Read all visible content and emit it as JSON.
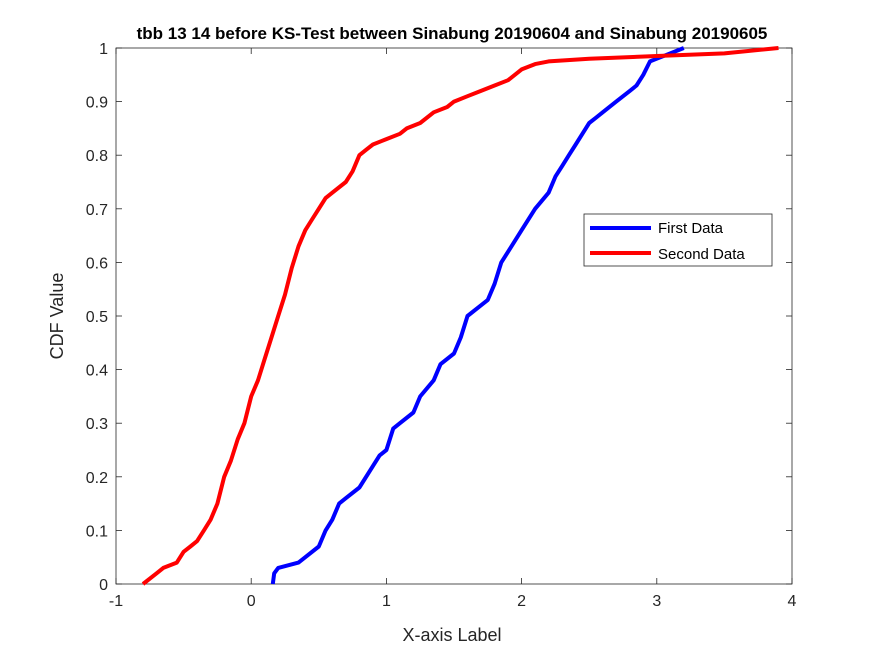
{
  "chart_data": {
    "type": "line",
    "title": "tbb 13 14 before KS-Test between Sinabung 20190604 and Sinabung 20190605",
    "xlabel": "X-axis Label",
    "ylabel": "CDF Value",
    "xlim": [
      -1,
      4
    ],
    "ylim": [
      0,
      1
    ],
    "xticks": [
      "-1",
      "0",
      "1",
      "2",
      "3",
      "4"
    ],
    "yticks": [
      "0",
      "0.1",
      "0.2",
      "0.3",
      "0.4",
      "0.5",
      "0.6",
      "0.7",
      "0.8",
      "0.9",
      "1"
    ],
    "grid": false,
    "legend_position": "middle-right",
    "series": [
      {
        "name": "First Data",
        "color": "#0000ff",
        "x": [
          0.16,
          0.17,
          0.2,
          0.35,
          0.4,
          0.5,
          0.55,
          0.6,
          0.65,
          0.7,
          0.8,
          0.9,
          0.95,
          1.0,
          1.05,
          1.1,
          1.2,
          1.25,
          1.35,
          1.4,
          1.5,
          1.55,
          1.6,
          1.7,
          1.75,
          1.8,
          1.85,
          1.9,
          2.0,
          2.1,
          2.2,
          2.25,
          2.3,
          2.35,
          2.4,
          2.45,
          2.5,
          2.55,
          2.6,
          2.7,
          2.8,
          2.85,
          2.9,
          2.95,
          3.0,
          3.1,
          3.2
        ],
        "y": [
          0.0,
          0.02,
          0.03,
          0.04,
          0.05,
          0.07,
          0.1,
          0.12,
          0.15,
          0.16,
          0.18,
          0.22,
          0.24,
          0.25,
          0.29,
          0.3,
          0.32,
          0.35,
          0.38,
          0.41,
          0.43,
          0.46,
          0.5,
          0.52,
          0.53,
          0.56,
          0.6,
          0.62,
          0.66,
          0.7,
          0.73,
          0.76,
          0.78,
          0.8,
          0.82,
          0.84,
          0.86,
          0.87,
          0.88,
          0.9,
          0.92,
          0.93,
          0.95,
          0.975,
          0.98,
          0.99,
          1.0
        ]
      },
      {
        "name": "Second Data",
        "color": "#ff0000",
        "x": [
          -0.8,
          -0.7,
          -0.65,
          -0.55,
          -0.5,
          -0.45,
          -0.4,
          -0.35,
          -0.3,
          -0.25,
          -0.2,
          -0.15,
          -0.1,
          -0.05,
          0.0,
          0.05,
          0.1,
          0.15,
          0.2,
          0.25,
          0.3,
          0.35,
          0.4,
          0.45,
          0.5,
          0.55,
          0.6,
          0.7,
          0.75,
          0.8,
          0.85,
          0.9,
          1.0,
          1.1,
          1.15,
          1.25,
          1.35,
          1.45,
          1.5,
          1.6,
          1.7,
          1.8,
          1.9,
          2.0,
          2.1,
          2.2,
          2.5,
          3.0,
          3.5,
          3.9
        ],
        "y": [
          0.0,
          0.02,
          0.03,
          0.04,
          0.06,
          0.07,
          0.08,
          0.1,
          0.12,
          0.15,
          0.2,
          0.23,
          0.27,
          0.3,
          0.35,
          0.38,
          0.42,
          0.46,
          0.5,
          0.54,
          0.59,
          0.63,
          0.66,
          0.68,
          0.7,
          0.72,
          0.73,
          0.75,
          0.77,
          0.8,
          0.81,
          0.82,
          0.83,
          0.84,
          0.85,
          0.86,
          0.88,
          0.89,
          0.9,
          0.91,
          0.92,
          0.93,
          0.94,
          0.96,
          0.97,
          0.975,
          0.98,
          0.985,
          0.99,
          1.0
        ]
      }
    ]
  }
}
